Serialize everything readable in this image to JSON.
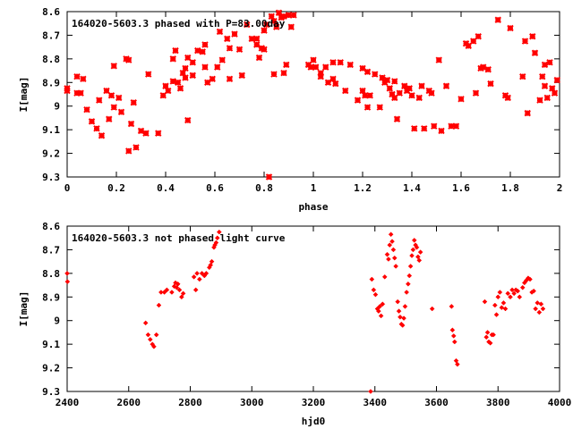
{
  "chart_data": [
    {
      "type": "scatter",
      "title": "164020-5603.3 phased with P=83.00day",
      "xlabel": "phase",
      "ylabel": "I[mag]",
      "xlim": [
        0,
        2
      ],
      "ylim": [
        8.6,
        9.3
      ],
      "y_inverted": true,
      "x_ticks": [
        0,
        0.2,
        0.4,
        0.6,
        0.8,
        1,
        1.2,
        1.4,
        1.6,
        1.8,
        2
      ],
      "x_tick_labels": [
        "0",
        "0.2",
        "0.4",
        "0.6",
        "0.8",
        "1",
        "1.2",
        "1.4",
        "1.6",
        "1.8",
        "2"
      ],
      "y_ticks": [
        8.6,
        8.7,
        8.8,
        8.9,
        9,
        9.1,
        9.2,
        9.3
      ],
      "y_tick_labels": [
        "8.6",
        "8.7",
        "8.8",
        "8.9",
        "9",
        "9.1",
        "9.2",
        "9.3"
      ],
      "grid": false,
      "marker_color": "#ff0000",
      "marker": "star",
      "points": [
        [
          0.0,
          8.925
        ],
        [
          0.0,
          8.935
        ],
        [
          0.04,
          8.875
        ],
        [
          0.04,
          8.945
        ],
        [
          0.055,
          8.945
        ],
        [
          0.065,
          8.885
        ],
        [
          0.08,
          9.015
        ],
        [
          0.1,
          9.065
        ],
        [
          0.12,
          9.095
        ],
        [
          0.13,
          8.975
        ],
        [
          0.14,
          9.125
        ],
        [
          0.16,
          8.935
        ],
        [
          0.17,
          9.055
        ],
        [
          0.18,
          8.955
        ],
        [
          0.19,
          9.005
        ],
        [
          0.19,
          8.83
        ],
        [
          0.21,
          8.965
        ],
        [
          0.22,
          9.025
        ],
        [
          0.24,
          8.8
        ],
        [
          0.25,
          9.19
        ],
        [
          0.25,
          8.805
        ],
        [
          0.26,
          9.075
        ],
        [
          0.27,
          8.985
        ],
        [
          0.28,
          9.175
        ],
        [
          0.3,
          9.105
        ],
        [
          0.32,
          9.115
        ],
        [
          0.33,
          8.865
        ],
        [
          0.37,
          9.115
        ],
        [
          0.39,
          8.955
        ],
        [
          0.4,
          8.915
        ],
        [
          0.41,
          8.935
        ],
        [
          0.43,
          8.895
        ],
        [
          0.43,
          8.8
        ],
        [
          0.44,
          8.765
        ],
        [
          0.45,
          8.9
        ],
        [
          0.46,
          8.925
        ],
        [
          0.47,
          8.86
        ],
        [
          0.48,
          8.84
        ],
        [
          0.48,
          8.88
        ],
        [
          0.49,
          8.795
        ],
        [
          0.49,
          9.06
        ],
        [
          0.51,
          8.815
        ],
        [
          0.51,
          8.87
        ],
        [
          0.53,
          8.765
        ],
        [
          0.55,
          8.77
        ],
        [
          0.56,
          8.74
        ],
        [
          0.56,
          8.835
        ],
        [
          0.57,
          8.9
        ],
        [
          0.59,
          8.885
        ],
        [
          0.61,
          8.835
        ],
        [
          0.62,
          8.685
        ],
        [
          0.63,
          8.805
        ],
        [
          0.65,
          8.715
        ],
        [
          0.66,
          8.755
        ],
        [
          0.66,
          8.885
        ],
        [
          0.68,
          8.695
        ],
        [
          0.7,
          8.76
        ],
        [
          0.71,
          8.87
        ],
        [
          0.73,
          8.655
        ],
        [
          0.75,
          8.715
        ],
        [
          0.77,
          8.715
        ],
        [
          0.77,
          8.74
        ],
        [
          0.78,
          8.795
        ],
        [
          0.79,
          8.755
        ],
        [
          0.8,
          8.76
        ],
        [
          0.8,
          8.68
        ],
        [
          0.81,
          8.655
        ],
        [
          0.82,
          9.3
        ],
        [
          0.83,
          8.62
        ],
        [
          0.84,
          8.64
        ],
        [
          0.84,
          8.865
        ],
        [
          0.85,
          8.665
        ],
        [
          0.86,
          8.605
        ],
        [
          0.87,
          8.625
        ],
        [
          0.88,
          8.62
        ],
        [
          0.88,
          8.86
        ],
        [
          0.89,
          8.825
        ],
        [
          0.9,
          8.615
        ],
        [
          0.91,
          8.665
        ],
        [
          0.92,
          8.615
        ],
        [
          0.98,
          8.825
        ],
        [
          0.99,
          8.835
        ],
        [
          1.0,
          8.805
        ],
        [
          1.01,
          8.835
        ],
        [
          1.03,
          8.86
        ],
        [
          1.03,
          8.875
        ],
        [
          1.05,
          8.835
        ],
        [
          1.06,
          8.9
        ],
        [
          1.08,
          8.815
        ],
        [
          1.08,
          8.885
        ],
        [
          1.09,
          8.905
        ],
        [
          1.11,
          8.815
        ],
        [
          1.13,
          8.935
        ],
        [
          1.15,
          8.825
        ],
        [
          1.18,
          8.975
        ],
        [
          1.2,
          8.84
        ],
        [
          1.2,
          8.935
        ],
        [
          1.21,
          8.955
        ],
        [
          1.22,
          8.855
        ],
        [
          1.22,
          9.005
        ],
        [
          1.23,
          8.955
        ],
        [
          1.25,
          8.865
        ],
        [
          1.27,
          9.005
        ],
        [
          1.28,
          8.88
        ],
        [
          1.29,
          8.9
        ],
        [
          1.3,
          8.89
        ],
        [
          1.31,
          8.925
        ],
        [
          1.32,
          8.95
        ],
        [
          1.33,
          8.965
        ],
        [
          1.33,
          8.895
        ],
        [
          1.34,
          9.055
        ],
        [
          1.35,
          8.945
        ],
        [
          1.37,
          8.915
        ],
        [
          1.38,
          8.935
        ],
        [
          1.39,
          8.925
        ],
        [
          1.4,
          8.955
        ],
        [
          1.41,
          9.095
        ],
        [
          1.43,
          8.965
        ],
        [
          1.44,
          8.915
        ],
        [
          1.45,
          9.095
        ],
        [
          1.47,
          8.935
        ],
        [
          1.48,
          8.945
        ],
        [
          1.49,
          9.085
        ],
        [
          1.51,
          8.805
        ],
        [
          1.52,
          9.105
        ],
        [
          1.54,
          8.915
        ],
        [
          1.56,
          9.085
        ],
        [
          1.58,
          9.085
        ],
        [
          1.6,
          8.97
        ],
        [
          1.62,
          8.735
        ],
        [
          1.63,
          8.745
        ],
        [
          1.65,
          8.725
        ],
        [
          1.66,
          8.945
        ],
        [
          1.67,
          8.705
        ],
        [
          1.68,
          8.84
        ],
        [
          1.69,
          8.835
        ],
        [
          1.71,
          8.845
        ],
        [
          1.72,
          8.905
        ],
        [
          1.75,
          8.635
        ],
        [
          1.78,
          8.955
        ],
        [
          1.79,
          8.965
        ],
        [
          1.8,
          8.67
        ],
        [
          1.85,
          8.875
        ],
        [
          1.86,
          8.725
        ],
        [
          1.87,
          9.03
        ],
        [
          1.89,
          8.705
        ],
        [
          1.9,
          8.775
        ],
        [
          1.92,
          8.975
        ],
        [
          1.93,
          8.875
        ],
        [
          1.94,
          8.915
        ],
        [
          1.94,
          8.825
        ],
        [
          1.95,
          8.965
        ],
        [
          1.96,
          8.815
        ],
        [
          1.97,
          8.925
        ],
        [
          1.98,
          8.945
        ],
        [
          1.99,
          8.89
        ]
      ]
    },
    {
      "type": "scatter",
      "title": "164020-5603.3 not phased light curve",
      "xlabel": "hjd0",
      "ylabel": "I[mag]",
      "xlim": [
        2400,
        4000
      ],
      "ylim": [
        8.6,
        9.3
      ],
      "y_inverted": true,
      "x_ticks": [
        2400,
        2600,
        2800,
        3000,
        3200,
        3400,
        3600,
        3800,
        4000
      ],
      "x_tick_labels": [
        "2400",
        "2600",
        "2800",
        "3000",
        "3200",
        "3400",
        "3600",
        "3800",
        "4000"
      ],
      "y_ticks": [
        8.6,
        8.7,
        8.8,
        8.9,
        9,
        9.1,
        9.2,
        9.3
      ],
      "y_tick_labels": [
        "8.6",
        "8.7",
        "8.8",
        "8.9",
        "9",
        "9.1",
        "9.2",
        "9.3"
      ],
      "grid": false,
      "marker_color": "#ff0000",
      "marker": "diamond",
      "points": [
        [
          2400,
          8.8
        ],
        [
          2401,
          8.835
        ],
        [
          2655,
          9.01
        ],
        [
          2663,
          9.06
        ],
        [
          2670,
          9.08
        ],
        [
          2677,
          9.1
        ],
        [
          2682,
          9.11
        ],
        [
          2690,
          9.06
        ],
        [
          2698,
          8.935
        ],
        [
          2705,
          8.88
        ],
        [
          2716,
          8.88
        ],
        [
          2724,
          8.87
        ],
        [
          2740,
          8.88
        ],
        [
          2748,
          8.855
        ],
        [
          2752,
          8.84
        ],
        [
          2756,
          8.86
        ],
        [
          2760,
          8.845
        ],
        [
          2765,
          8.87
        ],
        [
          2772,
          8.9
        ],
        [
          2777,
          8.885
        ],
        [
          2812,
          8.815
        ],
        [
          2818,
          8.87
        ],
        [
          2822,
          8.8
        ],
        [
          2830,
          8.825
        ],
        [
          2838,
          8.8
        ],
        [
          2846,
          8.81
        ],
        [
          2852,
          8.8
        ],
        [
          2862,
          8.775
        ],
        [
          2866,
          8.765
        ],
        [
          2870,
          8.75
        ],
        [
          2877,
          8.69
        ],
        [
          2880,
          8.68
        ],
        [
          2884,
          8.67
        ],
        [
          2888,
          8.65
        ],
        [
          2894,
          8.625
        ],
        [
          3386,
          9.3
        ],
        [
          3390,
          8.825
        ],
        [
          3396,
          8.87
        ],
        [
          3402,
          8.89
        ],
        [
          3408,
          8.95
        ],
        [
          3412,
          8.96
        ],
        [
          3416,
          8.94
        ],
        [
          3420,
          8.98
        ],
        [
          3425,
          8.93
        ],
        [
          3432,
          8.815
        ],
        [
          3440,
          8.72
        ],
        [
          3444,
          8.74
        ],
        [
          3448,
          8.68
        ],
        [
          3452,
          8.635
        ],
        [
          3456,
          8.665
        ],
        [
          3460,
          8.7
        ],
        [
          3464,
          8.735
        ],
        [
          3468,
          8.77
        ],
        [
          3474,
          8.92
        ],
        [
          3478,
          8.96
        ],
        [
          3482,
          8.985
        ],
        [
          3486,
          9.015
        ],
        [
          3490,
          9.02
        ],
        [
          3494,
          8.99
        ],
        [
          3498,
          8.94
        ],
        [
          3503,
          8.88
        ],
        [
          3508,
          8.845
        ],
        [
          3512,
          8.81
        ],
        [
          3516,
          8.77
        ],
        [
          3520,
          8.725
        ],
        [
          3524,
          8.7
        ],
        [
          3528,
          8.66
        ],
        [
          3532,
          8.68
        ],
        [
          3536,
          8.69
        ],
        [
          3540,
          8.73
        ],
        [
          3544,
          8.745
        ],
        [
          3548,
          8.71
        ],
        [
          3586,
          8.95
        ],
        [
          3649,
          8.94
        ],
        [
          3652,
          9.04
        ],
        [
          3656,
          9.065
        ],
        [
          3659,
          9.09
        ],
        [
          3664,
          9.17
        ],
        [
          3668,
          9.185
        ],
        [
          3757,
          8.92
        ],
        [
          3762,
          9.07
        ],
        [
          3766,
          9.05
        ],
        [
          3770,
          9.09
        ],
        [
          3775,
          9.095
        ],
        [
          3780,
          9.06
        ],
        [
          3785,
          9.06
        ],
        [
          3790,
          8.935
        ],
        [
          3795,
          8.975
        ],
        [
          3800,
          8.9
        ],
        [
          3806,
          8.88
        ],
        [
          3812,
          8.945
        ],
        [
          3818,
          8.925
        ],
        [
          3824,
          8.95
        ],
        [
          3832,
          8.885
        ],
        [
          3840,
          8.9
        ],
        [
          3846,
          8.87
        ],
        [
          3852,
          8.885
        ],
        [
          3858,
          8.87
        ],
        [
          3864,
          8.875
        ],
        [
          3870,
          8.9
        ],
        [
          3880,
          8.86
        ],
        [
          3886,
          8.84
        ],
        [
          3892,
          8.83
        ],
        [
          3898,
          8.82
        ],
        [
          3904,
          8.825
        ],
        [
          3910,
          8.88
        ],
        [
          3916,
          8.875
        ],
        [
          3922,
          8.95
        ],
        [
          3928,
          8.925
        ],
        [
          3934,
          8.965
        ],
        [
          3940,
          8.93
        ],
        [
          3946,
          8.95
        ]
      ]
    }
  ]
}
